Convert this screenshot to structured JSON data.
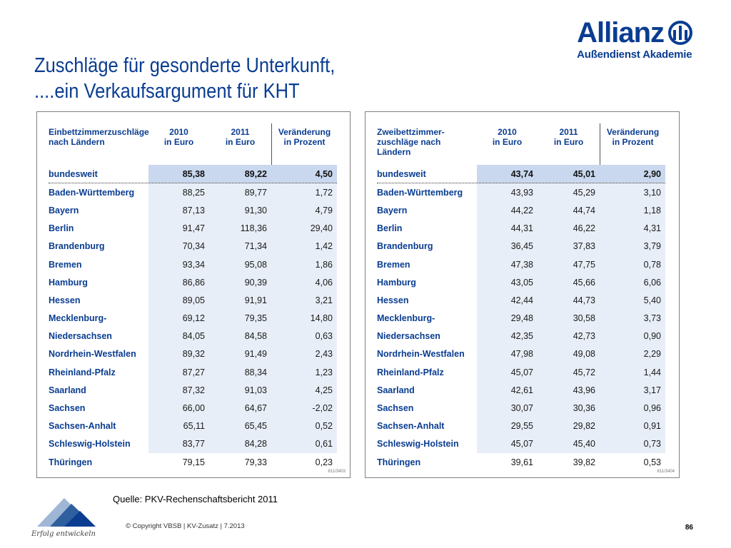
{
  "brand": {
    "name": "Allianz",
    "sub": "Außendienst Akademie",
    "colors": {
      "primary": "#0a3d91",
      "shade": "#e8eef7",
      "shade_dark": "#c9d8ee"
    }
  },
  "title": {
    "line1": "Zuschläge für gesonderte Unterkunft,",
    "line2": "....ein Verkaufsargument für KHT"
  },
  "left_table": {
    "headers": {
      "col0": [
        "Einbettzimmerzuschläge",
        "nach Ländern"
      ],
      "col1": [
        "2010",
        "in Euro"
      ],
      "col2": [
        "2011",
        "in Euro"
      ],
      "col3": [
        "Veränderung",
        "in Prozent"
      ]
    },
    "total": {
      "name": "bundesweit",
      "v2010": "85,38",
      "v2011": "89,22",
      "change": "4,50"
    },
    "rows": [
      {
        "name": "Baden-Württemberg",
        "v2010": "88,25",
        "v2011": "89,77",
        "change": "1,72"
      },
      {
        "name": "Bayern",
        "v2010": "87,13",
        "v2011": "91,30",
        "change": "4,79"
      },
      {
        "name": "Berlin",
        "v2010": "91,47",
        "v2011": "118,36",
        "change": "29,40"
      },
      {
        "name": "Brandenburg",
        "v2010": "70,34",
        "v2011": "71,34",
        "change": "1,42"
      },
      {
        "name": "Bremen",
        "v2010": "93,34",
        "v2011": "95,08",
        "change": "1,86"
      },
      {
        "name": "Hamburg",
        "v2010": "86,86",
        "v2011": "90,39",
        "change": "4,06"
      },
      {
        "name": "Hessen",
        "v2010": "89,05",
        "v2011": "91,91",
        "change": "3,21"
      },
      {
        "name": "Mecklenburg-",
        "v2010": "69,12",
        "v2011": "79,35",
        "change": "14,80"
      },
      {
        "name": "Niedersachsen",
        "v2010": "84,05",
        "v2011": "84,58",
        "change": "0,63"
      },
      {
        "name": "Nordrhein-Westfalen",
        "v2010": "89,32",
        "v2011": "91,49",
        "change": "2,43"
      },
      {
        "name": "Rheinland-Pfalz",
        "v2010": "87,27",
        "v2011": "88,34",
        "change": "1,23"
      },
      {
        "name": "Saarland",
        "v2010": "87,32",
        "v2011": "91,03",
        "change": "4,25"
      },
      {
        "name": "Sachsen",
        "v2010": "66,00",
        "v2011": "64,67",
        "change": "-2,02"
      },
      {
        "name": "Sachsen-Anhalt",
        "v2010": "65,11",
        "v2011": "65,45",
        "change": "0,52"
      },
      {
        "name": "Schleswig-Holstein",
        "v2010": "83,77",
        "v2011": "84,28",
        "change": "0,61"
      },
      {
        "name": "Thüringen",
        "v2010": "79,15",
        "v2011": "79,33",
        "change": "0,23"
      }
    ],
    "ref": "811/3403"
  },
  "right_table": {
    "headers": {
      "col0": [
        "Zweibettzimmer-",
        "zuschläge nach Ländern"
      ],
      "col1": [
        "2010",
        "in Euro"
      ],
      "col2": [
        "2011",
        "in Euro"
      ],
      "col3": [
        "Veränderung",
        "in Prozent"
      ]
    },
    "total": {
      "name": "bundesweit",
      "v2010": "43,74",
      "v2011": "45,01",
      "change": "2,90"
    },
    "rows": [
      {
        "name": "Baden-Württemberg",
        "v2010": "43,93",
        "v2011": "45,29",
        "change": "3,10"
      },
      {
        "name": "Bayern",
        "v2010": "44,22",
        "v2011": "44,74",
        "change": "1,18"
      },
      {
        "name": "Berlin",
        "v2010": "44,31",
        "v2011": "46,22",
        "change": "4,31"
      },
      {
        "name": "Brandenburg",
        "v2010": "36,45",
        "v2011": "37,83",
        "change": "3,79"
      },
      {
        "name": "Bremen",
        "v2010": "47,38",
        "v2011": "47,75",
        "change": "0,78"
      },
      {
        "name": "Hamburg",
        "v2010": "43,05",
        "v2011": "45,66",
        "change": "6,06"
      },
      {
        "name": "Hessen",
        "v2010": "42,44",
        "v2011": "44,73",
        "change": "5,40"
      },
      {
        "name": "Mecklenburg-",
        "v2010": "29,48",
        "v2011": "30,58",
        "change": "3,73"
      },
      {
        "name": "Niedersachsen",
        "v2010": "42,35",
        "v2011": "42,73",
        "change": "0,90"
      },
      {
        "name": "Nordrhein-Westfalen",
        "v2010": "47,98",
        "v2011": "49,08",
        "change": "2,29"
      },
      {
        "name": "Rheinland-Pfalz",
        "v2010": "45,07",
        "v2011": "45,72",
        "change": "1,44"
      },
      {
        "name": "Saarland",
        "v2010": "42,61",
        "v2011": "43,96",
        "change": "3,17"
      },
      {
        "name": "Sachsen",
        "v2010": "30,07",
        "v2011": "30,36",
        "change": "0,96"
      },
      {
        "name": "Sachsen-Anhalt",
        "v2010": "29,55",
        "v2011": "29,82",
        "change": "0,91"
      },
      {
        "name": "Schleswig-Holstein",
        "v2010": "45,07",
        "v2011": "45,40",
        "change": "0,73"
      },
      {
        "name": "Thüringen",
        "v2010": "39,61",
        "v2011": "39,82",
        "change": "0,53"
      }
    ],
    "ref": "811/3404"
  },
  "source": "Quelle: PKV-Rechenschaftsbericht 2011",
  "footer": {
    "copyright": "© Copyright VBSB | KV-Zusatz | 7.2013",
    "page": "86",
    "logo_tagline": "Erfolg entwickeln"
  }
}
